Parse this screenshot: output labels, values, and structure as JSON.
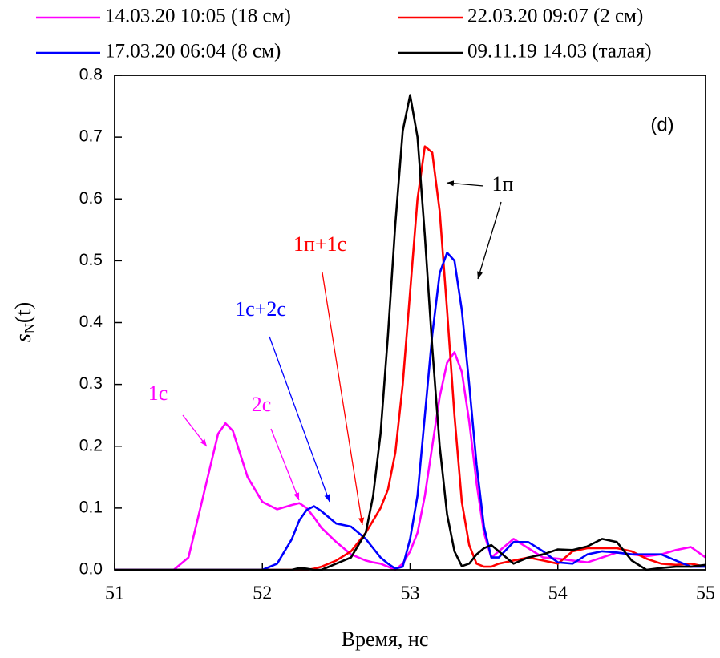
{
  "chart_data": {
    "type": "line",
    "x_label": "Время, нс",
    "y_label_parts": [
      "s",
      "N",
      "(t)"
    ],
    "panel_label": "(d)",
    "x": [
      51.0,
      51.2,
      51.4,
      51.5,
      51.6,
      51.7,
      51.75,
      51.8,
      51.9,
      52.0,
      52.1,
      52.2,
      52.25,
      52.3,
      52.35,
      52.4,
      52.5,
      52.6,
      52.7,
      52.75,
      52.8,
      52.85,
      52.9,
      52.95,
      53.0,
      53.05,
      53.1,
      53.15,
      53.2,
      53.25,
      53.3,
      53.35,
      53.4,
      53.45,
      53.5,
      53.55,
      53.6,
      53.7,
      53.8,
      53.9,
      54.0,
      54.1,
      54.2,
      54.3,
      54.4,
      54.5,
      54.6,
      54.7,
      54.8,
      54.9,
      55.0
    ],
    "series": [
      {
        "name": "14.03.20 10:05 (18 см)",
        "color": "#ff00ff",
        "values": [
          0,
          0,
          0,
          0.02,
          0.12,
          0.22,
          0.237,
          0.225,
          0.15,
          0.11,
          0.098,
          0.105,
          0.108,
          0.1,
          0.085,
          0.068,
          0.045,
          0.025,
          0.015,
          0.012,
          0.01,
          0.005,
          0,
          0.01,
          0.03,
          0.06,
          0.12,
          0.2,
          0.28,
          0.335,
          0.352,
          0.32,
          0.24,
          0.14,
          0.06,
          0.02,
          0.03,
          0.05,
          0.035,
          0.02,
          0.018,
          0.015,
          0.012,
          0.02,
          0.028,
          0.025,
          0.022,
          0.025,
          0.032,
          0.037,
          0.02
        ]
      },
      {
        "name": "22.03.20 09:07 (2 см)",
        "color": "#ff0000",
        "values": [
          0,
          0,
          0,
          0,
          0,
          0,
          0,
          0,
          0,
          0,
          0,
          0,
          0,
          0,
          0.002,
          0.005,
          0.015,
          0.03,
          0.06,
          0.08,
          0.1,
          0.13,
          0.19,
          0.3,
          0.45,
          0.6,
          0.685,
          0.675,
          0.58,
          0.42,
          0.25,
          0.11,
          0.04,
          0.01,
          0.005,
          0.005,
          0.01,
          0.015,
          0.02,
          0.015,
          0.01,
          0.03,
          0.035,
          0.035,
          0.035,
          0.03,
          0.018,
          0.01,
          0.008,
          0.01,
          0.005
        ]
      },
      {
        "name": "17.03.20 06:04 (8 см)",
        "color": "#0000ff",
        "values": [
          0,
          0,
          0,
          0,
          0,
          0,
          0,
          0,
          0,
          0,
          0.01,
          0.05,
          0.08,
          0.097,
          0.103,
          0.095,
          0.075,
          0.07,
          0.05,
          0.035,
          0.02,
          0.01,
          0.002,
          0.005,
          0.05,
          0.12,
          0.25,
          0.38,
          0.48,
          0.513,
          0.5,
          0.42,
          0.3,
          0.17,
          0.07,
          0.02,
          0.02,
          0.045,
          0.045,
          0.03,
          0.012,
          0.01,
          0.025,
          0.03,
          0.028,
          0.025,
          0.025,
          0.025,
          0.015,
          0.005,
          0.005
        ]
      },
      {
        "name": "09.11.19 14.03 (талая)",
        "color": "#000000",
        "values": [
          0,
          0,
          0,
          0,
          0,
          0,
          0,
          0,
          0,
          0,
          0,
          0,
          0.003,
          0.002,
          0,
          0,
          0.01,
          0.02,
          0.06,
          0.12,
          0.22,
          0.38,
          0.56,
          0.71,
          0.768,
          0.7,
          0.54,
          0.36,
          0.2,
          0.09,
          0.03,
          0.006,
          0.01,
          0.025,
          0.035,
          0.04,
          0.03,
          0.01,
          0.02,
          0.025,
          0.033,
          0.032,
          0.038,
          0.05,
          0.045,
          0.015,
          0,
          0.003,
          0.005,
          0.005,
          0.008
        ]
      }
    ],
    "annotations": [
      {
        "text": "1с",
        "color": "#ff00ff"
      },
      {
        "text": "2с",
        "color": "#ff00ff"
      },
      {
        "text": "1с+2с",
        "color": "#0000ff"
      },
      {
        "text": "1п+1с",
        "color": "#ff0000"
      },
      {
        "text": "1п",
        "color": "#000000"
      }
    ],
    "xlim": [
      51,
      55
    ],
    "xticks": [
      51,
      52,
      53,
      54,
      55
    ],
    "ylim": [
      0,
      0.8
    ],
    "yticks": [
      {
        "value": 0,
        "label": "0.0"
      },
      0.1,
      0.2,
      0.3,
      0.4,
      0.5,
      0.6,
      0.7,
      0.8
    ]
  }
}
